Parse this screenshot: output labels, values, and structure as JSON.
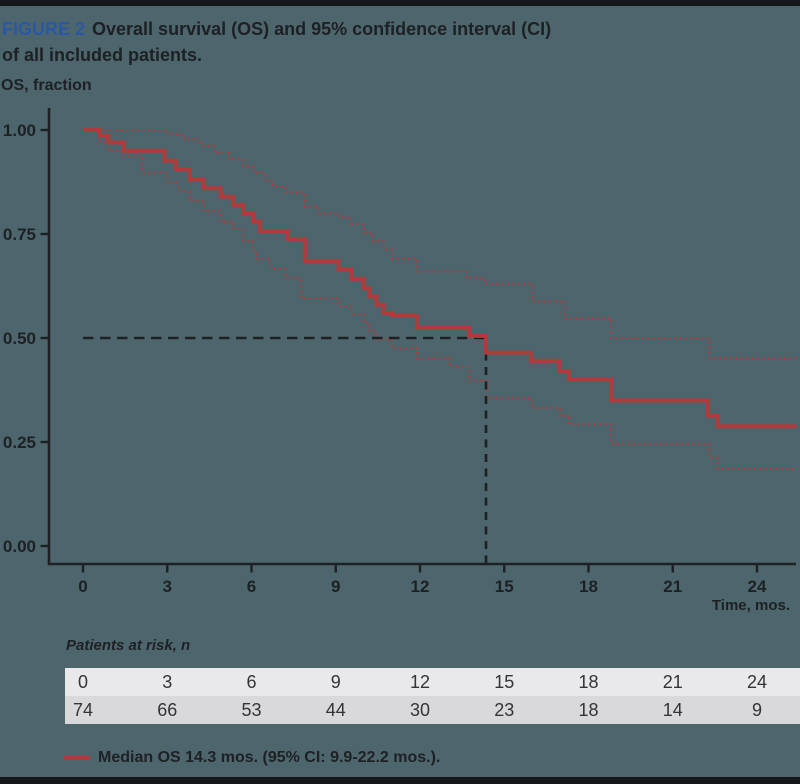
{
  "page": {
    "background_color": "#4d656c",
    "text_color": "#1d2124",
    "accent_red": "#ae3c3c",
    "figure_label_color": "#2a59a3",
    "table_row1_color": "#e9e9eb",
    "table_row2_color": "#d9d9db"
  },
  "header": {
    "figure_label": "FIGURE 2",
    "title_line1": "Overall survival (OS) and 95% confidence interval (CI)",
    "title_line2": "of all included patients."
  },
  "chart_data": {
    "type": "line",
    "subtype": "kaplan-meier-step",
    "title": "Overall survival (OS) and 95% confidence interval (CI) of all included patients.",
    "ylabel": "OS, fraction",
    "xlabel": "Time, mos.",
    "xlim": [
      0,
      25.4
    ],
    "ylim": [
      0.0,
      1.0
    ],
    "x_ticks": [
      0,
      3,
      6,
      9,
      12,
      15,
      18,
      21,
      24
    ],
    "y_ticks": [
      1.0,
      0.75,
      0.5,
      0.25,
      0.0
    ],
    "y_tick_labels": [
      "1.00",
      "0.75",
      "0.50",
      "0.25",
      "0.00"
    ],
    "grid": false,
    "legend_position": "bottom",
    "median_reference": {
      "time_months": 14.35,
      "fraction": 0.5
    },
    "series": [
      {
        "name": "OS",
        "line": "solid",
        "color": "#ae3c3c",
        "step_points": [
          [
            0,
            1.0
          ],
          [
            0.6,
            0.986
          ],
          [
            0.9,
            0.97
          ],
          [
            1.45,
            0.95
          ],
          [
            2.9,
            0.926
          ],
          [
            3.3,
            0.906
          ],
          [
            3.8,
            0.88
          ],
          [
            4.3,
            0.86
          ],
          [
            4.9,
            0.84
          ],
          [
            5.35,
            0.82
          ],
          [
            5.7,
            0.8
          ],
          [
            6.05,
            0.78
          ],
          [
            6.3,
            0.757
          ],
          [
            7.3,
            0.738
          ],
          [
            7.9,
            0.685
          ],
          [
            9.1,
            0.665
          ],
          [
            9.55,
            0.642
          ],
          [
            10.0,
            0.62
          ],
          [
            10.2,
            0.6
          ],
          [
            10.45,
            0.58
          ],
          [
            10.7,
            0.56
          ],
          [
            11.0,
            0.553
          ],
          [
            11.9,
            0.524
          ],
          [
            13.75,
            0.505
          ],
          [
            14.35,
            0.465
          ],
          [
            15.95,
            0.445
          ],
          [
            16.95,
            0.42
          ],
          [
            17.3,
            0.4
          ],
          [
            18.8,
            0.35
          ],
          [
            22.25,
            0.313
          ],
          [
            22.6,
            0.288
          ],
          [
            25.4,
            0.288
          ]
        ]
      },
      {
        "name": "95% CI upper bound",
        "line": "dotted",
        "color": "#ae3c3c",
        "step_points": [
          [
            0,
            1.0
          ],
          [
            3.0,
            0.99
          ],
          [
            3.6,
            0.978
          ],
          [
            4.2,
            0.962
          ],
          [
            4.7,
            0.945
          ],
          [
            5.2,
            0.93
          ],
          [
            5.7,
            0.913
          ],
          [
            6.1,
            0.897
          ],
          [
            6.5,
            0.879
          ],
          [
            6.75,
            0.865
          ],
          [
            7.2,
            0.85
          ],
          [
            7.9,
            0.817
          ],
          [
            8.4,
            0.8
          ],
          [
            9.1,
            0.79
          ],
          [
            9.55,
            0.774
          ],
          [
            10.0,
            0.753
          ],
          [
            10.3,
            0.733
          ],
          [
            10.7,
            0.713
          ],
          [
            11.0,
            0.69
          ],
          [
            11.9,
            0.66
          ],
          [
            13.65,
            0.645
          ],
          [
            14.3,
            0.63
          ],
          [
            16.0,
            0.588
          ],
          [
            17.15,
            0.548
          ],
          [
            18.8,
            0.5
          ],
          [
            22.3,
            0.452
          ],
          [
            25.4,
            0.452
          ]
        ]
      },
      {
        "name": "95% CI lower bound",
        "line": "dotted",
        "color": "#ae3c3c",
        "step_points": [
          [
            0,
            1.0
          ],
          [
            0.6,
            0.97
          ],
          [
            0.9,
            0.95
          ],
          [
            1.4,
            0.938
          ],
          [
            2.1,
            0.897
          ],
          [
            3.0,
            0.873
          ],
          [
            3.4,
            0.853
          ],
          [
            3.8,
            0.83
          ],
          [
            4.3,
            0.805
          ],
          [
            4.9,
            0.78
          ],
          [
            5.35,
            0.762
          ],
          [
            5.7,
            0.733
          ],
          [
            6.05,
            0.71
          ],
          [
            6.2,
            0.69
          ],
          [
            6.7,
            0.666
          ],
          [
            7.2,
            0.645
          ],
          [
            7.75,
            0.596
          ],
          [
            9.1,
            0.577
          ],
          [
            9.55,
            0.558
          ],
          [
            10.0,
            0.536
          ],
          [
            10.2,
            0.517
          ],
          [
            10.45,
            0.497
          ],
          [
            11.0,
            0.476
          ],
          [
            11.9,
            0.452
          ],
          [
            13.05,
            0.43
          ],
          [
            13.75,
            0.397
          ],
          [
            14.4,
            0.356
          ],
          [
            16.0,
            0.332
          ],
          [
            17.0,
            0.313
          ],
          [
            17.3,
            0.293
          ],
          [
            18.8,
            0.245
          ],
          [
            22.3,
            0.212
          ],
          [
            22.6,
            0.185
          ],
          [
            25.4,
            0.185
          ]
        ]
      }
    ]
  },
  "at_risk_table": {
    "heading": "Patients at risk, n",
    "time_row": [
      "0",
      "3",
      "6",
      "9",
      "12",
      "15",
      "18",
      "21",
      "24"
    ],
    "count_row": [
      "74",
      "66",
      "53",
      "44",
      "30",
      "23",
      "18",
      "14",
      "9"
    ]
  },
  "legend": {
    "label": "Median OS 14.3 mos. (95% CI: 9.9-22.2 mos.)."
  }
}
